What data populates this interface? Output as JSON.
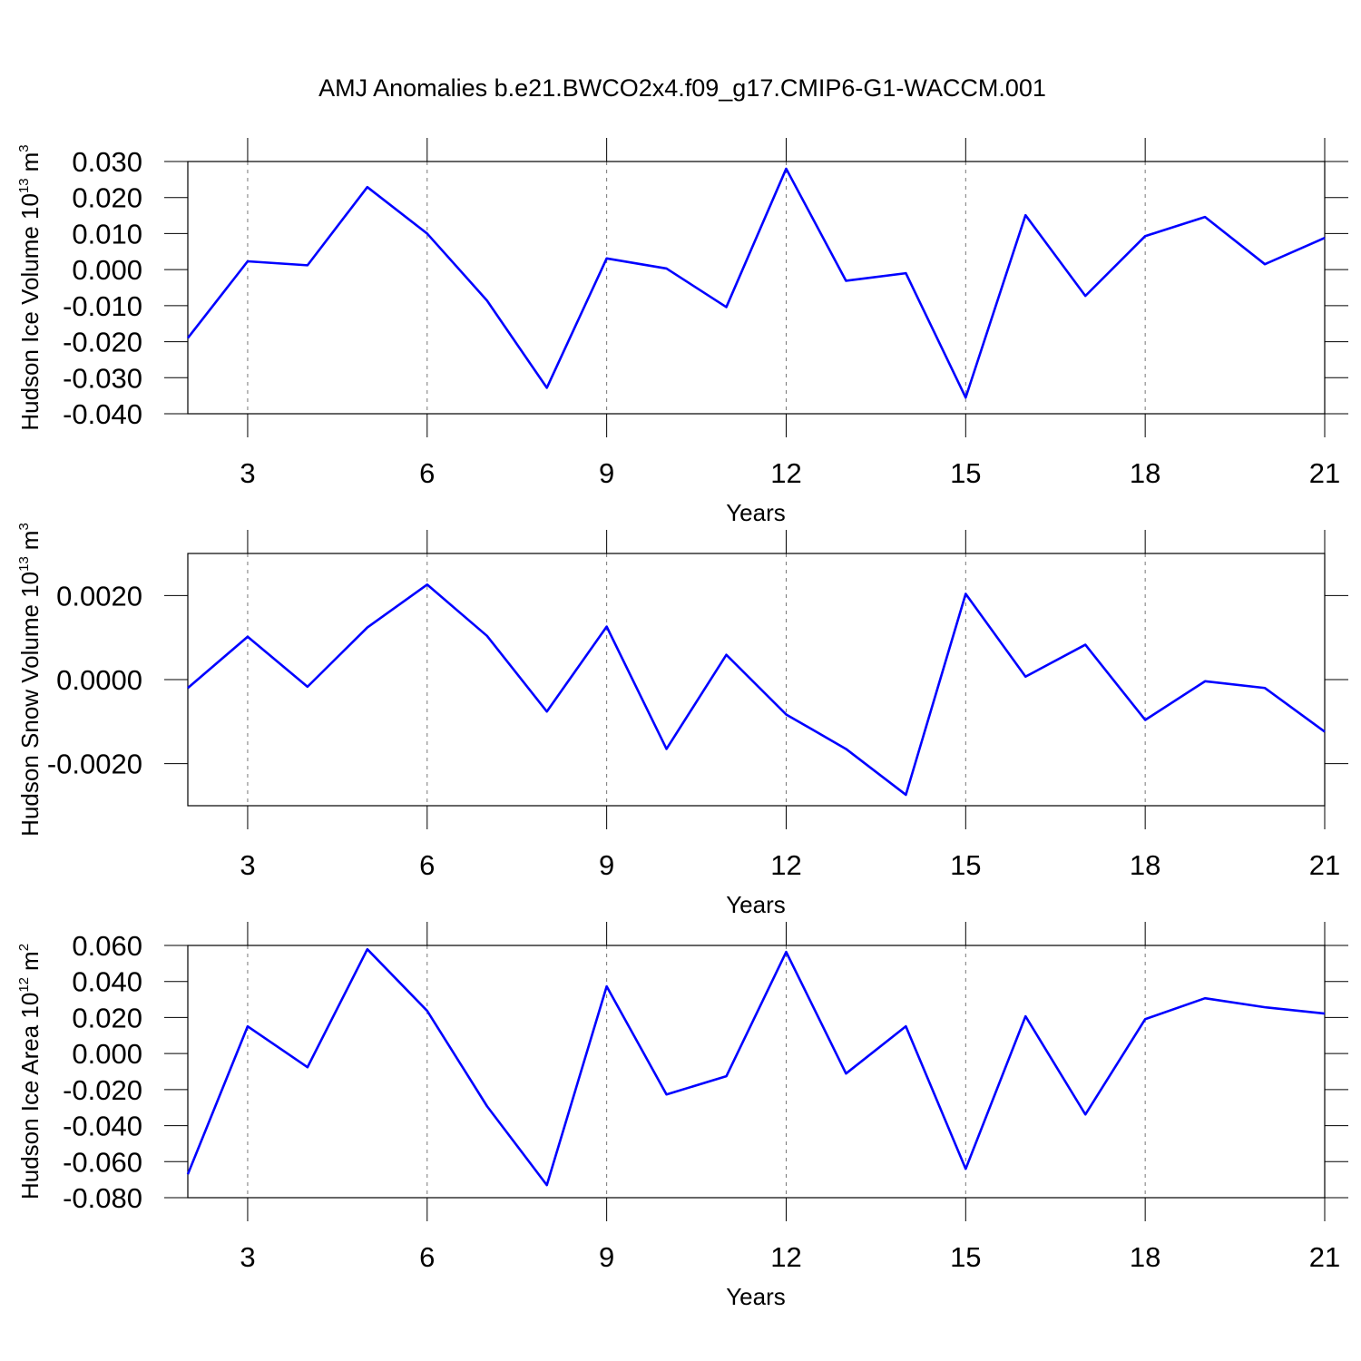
{
  "chart_data": [
    {
      "type": "line",
      "title": "AMJ Anomalies b.e21.BWCO2x4.f09_g17.CMIP6-G1-WACCM.001",
      "xlabel": "Years",
      "ylabel": {
        "text": "Hudson Ice Volume 10",
        "exponent": "13",
        "unit": "m",
        "unit_exponent": "3"
      },
      "x": [
        2,
        3,
        4,
        5,
        6,
        7,
        8,
        9,
        10,
        11,
        12,
        13,
        14,
        15,
        16,
        17,
        18,
        19,
        20,
        21
      ],
      "series": [
        {
          "color": "#0000ff",
          "values": [
            -0.019,
            0.0023,
            0.0012,
            0.0229,
            0.01,
            -0.0086,
            -0.0328,
            0.0031,
            0.0003,
            -0.0104,
            0.028,
            -0.0031,
            -0.001,
            -0.0355,
            0.0151,
            -0.0073,
            0.0093,
            0.0146,
            0.0015,
            0.0088
          ]
        }
      ],
      "xlim": [
        2,
        21
      ],
      "xticks": [
        3,
        6,
        9,
        12,
        15,
        18,
        21
      ],
      "ylim": [
        -0.04,
        0.03
      ],
      "yticks": [
        {
          "value": -0.04,
          "label": "-0.040"
        },
        {
          "value": -0.03,
          "label": "-0.030"
        },
        {
          "value": -0.02,
          "label": "-0.020"
        },
        {
          "value": -0.01,
          "label": "-0.010"
        },
        {
          "value": 0,
          "label": "0.000"
        },
        {
          "value": 0.01,
          "label": "0.010"
        },
        {
          "value": 0.02,
          "label": "0.020"
        },
        {
          "value": 0.03,
          "label": "0.030"
        }
      ],
      "grid": "x"
    },
    {
      "type": "line",
      "xlabel": "Years",
      "ylabel": {
        "text": "Hudson Snow Volume 10",
        "exponent": "13",
        "unit": "m",
        "unit_exponent": "3"
      },
      "x": [
        2,
        3,
        4,
        5,
        6,
        7,
        8,
        9,
        10,
        11,
        12,
        13,
        14,
        15,
        16,
        17,
        18,
        19,
        20,
        21
      ],
      "series": [
        {
          "color": "#0000ff",
          "values": [
            -0.0002,
            0.00102,
            -0.00017,
            0.00124,
            0.00226,
            0.00104,
            -0.00076,
            0.00126,
            -0.00165,
            0.00059,
            -0.00083,
            -0.00165,
            -0.00274,
            0.00204,
            7e-05,
            0.00083,
            -0.00096,
            -4e-05,
            -0.0002,
            -0.00124
          ]
        }
      ],
      "xlim": [
        2,
        21
      ],
      "xticks": [
        3,
        6,
        9,
        12,
        15,
        18,
        21
      ],
      "ylim": [
        -0.003,
        0.003
      ],
      "yticks": [
        {
          "value": -0.002,
          "label": "-0.0020"
        },
        {
          "value": 0,
          "label": "0.0000"
        },
        {
          "value": 0.002,
          "label": "0.0020"
        }
      ],
      "grid": "x"
    },
    {
      "type": "line",
      "xlabel": "Years",
      "ylabel": {
        "text": "Hudson Ice Area 10",
        "exponent": "12",
        "unit": "m",
        "unit_exponent": "2"
      },
      "x": [
        2,
        3,
        4,
        5,
        6,
        7,
        8,
        9,
        10,
        11,
        12,
        13,
        14,
        15,
        16,
        17,
        18,
        19,
        20,
        21
      ],
      "series": [
        {
          "color": "#0000ff",
          "values": [
            -0.067,
            0.0151,
            -0.0076,
            0.0579,
            0.0237,
            -0.0292,
            -0.073,
            0.0373,
            -0.0227,
            -0.0126,
            0.0564,
            -0.0111,
            0.0151,
            -0.064,
            0.0207,
            -0.0338,
            0.0191,
            0.0307,
            0.0257,
            0.0222
          ]
        }
      ],
      "xlim": [
        2,
        21
      ],
      "xticks": [
        3,
        6,
        9,
        12,
        15,
        18,
        21
      ],
      "ylim": [
        -0.08,
        0.06
      ],
      "yticks": [
        {
          "value": -0.08,
          "label": "-0.080"
        },
        {
          "value": -0.06,
          "label": "-0.060"
        },
        {
          "value": -0.04,
          "label": "-0.040"
        },
        {
          "value": -0.02,
          "label": "-0.020"
        },
        {
          "value": 0,
          "label": "0.000"
        },
        {
          "value": 0.02,
          "label": "0.020"
        },
        {
          "value": 0.04,
          "label": "0.040"
        },
        {
          "value": 0.06,
          "label": "0.060"
        }
      ],
      "grid": "x"
    }
  ]
}
